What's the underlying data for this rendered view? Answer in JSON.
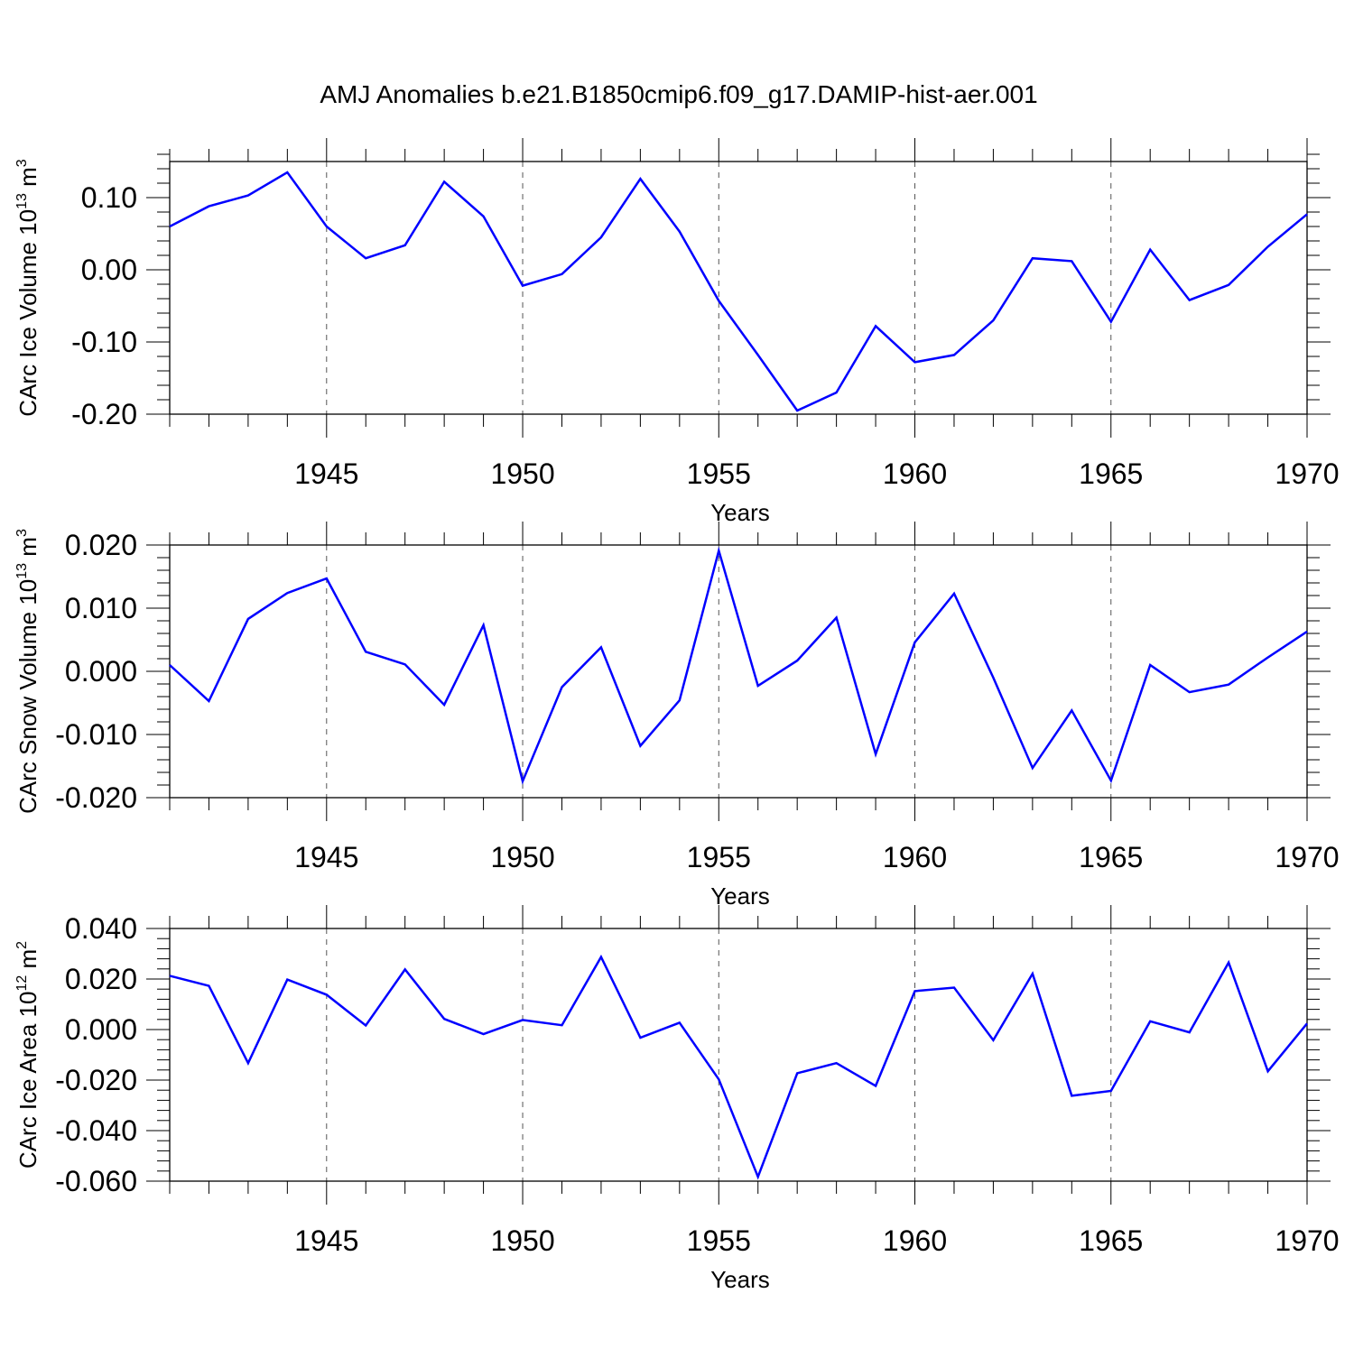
{
  "title": "AMJ Anomalies b.e21.B1850cmip6.f09_g17.DAMIP-hist-aer.001",
  "colors": {
    "line": "#0000ff",
    "axis": "#000000",
    "grid": "#555555"
  },
  "chart_data": [
    {
      "type": "line",
      "ylabel_text": "CArc Ice Volume 10",
      "ylabel_exp": "13",
      "ylabel_unit": "m",
      "ylabel_unit_exp": "3",
      "xlabel": "Years",
      "xlim": [
        1941,
        1970
      ],
      "ylim": [
        -0.2,
        0.15
      ],
      "yticks": [
        -0.2,
        -0.1,
        0.0,
        0.1
      ],
      "ytick_labels": [
        "-0.20",
        "-0.10",
        "0.00",
        "0.10"
      ],
      "xticks": [
        1945,
        1950,
        1955,
        1960,
        1965,
        1970
      ],
      "xtick_labels": [
        "1945",
        "1950",
        "1955",
        "1960",
        "1965",
        "1970"
      ],
      "grid_x": [
        1945,
        1950,
        1955,
        1960,
        1965
      ],
      "x": [
        1941,
        1942,
        1943,
        1944,
        1945,
        1946,
        1947,
        1948,
        1949,
        1950,
        1951,
        1952,
        1953,
        1954,
        1955,
        1956,
        1957,
        1958,
        1959,
        1960,
        1961,
        1962,
        1963,
        1964,
        1965,
        1966,
        1967,
        1968,
        1969,
        1970
      ],
      "series": [
        {
          "values": [
            0.06,
            0.088,
            0.103,
            0.135,
            0.06,
            0.016,
            0.034,
            0.122,
            0.074,
            -0.022,
            -0.006,
            0.045,
            0.126,
            0.053,
            -0.043,
            -0.118,
            -0.195,
            -0.17,
            -0.078,
            -0.128,
            -0.118,
            -0.07,
            0.016,
            0.012,
            -0.072,
            0.028,
            -0.042,
            -0.021,
            0.032,
            0.077
          ]
        }
      ]
    },
    {
      "type": "line",
      "ylabel_text": "CArc Snow Volume 10",
      "ylabel_exp": "13",
      "ylabel_unit": "m",
      "ylabel_unit_exp": "3",
      "xlabel": "Years",
      "xlim": [
        1941,
        1970
      ],
      "ylim": [
        -0.02,
        0.02
      ],
      "yticks": [
        -0.02,
        -0.01,
        0.0,
        0.01,
        0.02
      ],
      "ytick_labels": [
        "-0.020",
        "-0.010",
        "0.000",
        "0.010",
        "0.020"
      ],
      "xticks": [
        1945,
        1950,
        1955,
        1960,
        1965,
        1970
      ],
      "xtick_labels": [
        "1945",
        "1950",
        "1955",
        "1960",
        "1965",
        "1970"
      ],
      "grid_x": [
        1945,
        1950,
        1955,
        1960,
        1965
      ],
      "x": [
        1941,
        1942,
        1943,
        1944,
        1945,
        1946,
        1947,
        1948,
        1949,
        1950,
        1951,
        1952,
        1953,
        1954,
        1955,
        1956,
        1957,
        1958,
        1959,
        1960,
        1961,
        1962,
        1963,
        1964,
        1965,
        1966,
        1967,
        1968,
        1969,
        1970
      ],
      "series": [
        {
          "values": [
            0.001,
            -0.0047,
            0.0083,
            0.0124,
            0.0147,
            0.0031,
            0.0011,
            -0.0053,
            0.0073,
            -0.0174,
            -0.0025,
            0.0038,
            -0.0118,
            -0.0046,
            0.0191,
            -0.0023,
            0.0017,
            0.0085,
            -0.0131,
            0.0046,
            0.0123,
            -0.001,
            -0.0153,
            -0.0062,
            -0.0173,
            0.001,
            -0.0033,
            -0.0021,
            0.0022,
            0.0063
          ]
        }
      ]
    },
    {
      "type": "line",
      "ylabel_text": "CArc Ice Area 10",
      "ylabel_exp": "12",
      "ylabel_unit": "m",
      "ylabel_unit_exp": "2",
      "xlabel": "Years",
      "xlim": [
        1941,
        1970
      ],
      "ylim": [
        -0.06,
        0.04
      ],
      "yticks": [
        -0.06,
        -0.04,
        -0.02,
        0.0,
        0.02,
        0.04
      ],
      "ytick_labels": [
        "-0.060",
        "-0.040",
        "-0.020",
        "0.000",
        "0.020",
        "0.040"
      ],
      "xticks": [
        1945,
        1950,
        1955,
        1960,
        1965,
        1970
      ],
      "xtick_labels": [
        "1945",
        "1950",
        "1955",
        "1960",
        "1965",
        "1970"
      ],
      "grid_x": [
        1945,
        1950,
        1955,
        1960,
        1965
      ],
      "x": [
        1941,
        1942,
        1943,
        1944,
        1945,
        1946,
        1947,
        1948,
        1949,
        1950,
        1951,
        1952,
        1953,
        1954,
        1955,
        1956,
        1957,
        1958,
        1959,
        1960,
        1961,
        1962,
        1963,
        1964,
        1965,
        1966,
        1967,
        1968,
        1969,
        1970
      ],
      "series": [
        {
          "values": [
            0.0213,
            0.0173,
            -0.0133,
            0.0198,
            0.0138,
            0.0016,
            0.0238,
            0.0042,
            -0.0018,
            0.0038,
            0.0017,
            0.0287,
            -0.0032,
            0.0027,
            -0.0197,
            -0.0583,
            -0.0173,
            -0.0133,
            -0.0223,
            0.0152,
            0.0166,
            -0.0042,
            0.0221,
            -0.0262,
            -0.0243,
            0.0033,
            -0.0011,
            0.0265,
            -0.0165,
            0.0024
          ]
        }
      ]
    }
  ]
}
